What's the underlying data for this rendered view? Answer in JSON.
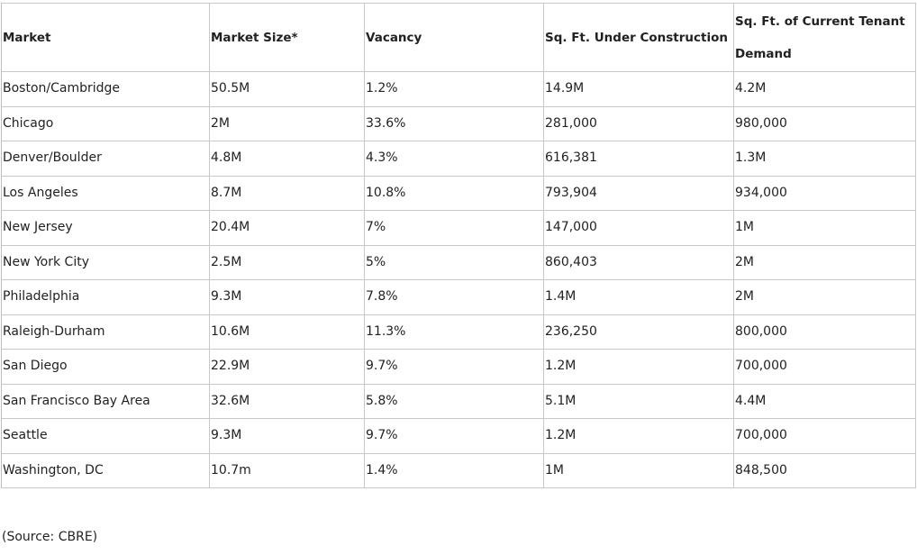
{
  "table": {
    "headers": [
      "Market",
      "Market Size*",
      "Vacancy",
      "Sq. Ft. Under Construction",
      "Sq. Ft. of Current Tenant Demand"
    ],
    "rows": [
      [
        "Boston/Cambridge",
        "50.5M",
        "1.2%",
        "14.9M",
        "4.2M"
      ],
      [
        "Chicago",
        "2M",
        "33.6%",
        "281,000",
        "980,000"
      ],
      [
        "Denver/Boulder",
        "4.8M",
        "4.3%",
        "616,381",
        "1.3M"
      ],
      [
        "Los Angeles",
        "8.7M",
        "10.8%",
        "793,904",
        "934,000"
      ],
      [
        "New Jersey",
        "20.4M",
        "7%",
        "147,000",
        "1M"
      ],
      [
        "New York City",
        "2.5M",
        "5%",
        "860,403",
        "2M"
      ],
      [
        "Philadelphia",
        "9.3M",
        "7.8%",
        "1.4M",
        "2M"
      ],
      [
        "Raleigh-Durham",
        "10.6M",
        "11.3%",
        "236,250",
        "800,000"
      ],
      [
        "San Diego",
        "22.9M",
        "9.7%",
        "1.2M",
        "700,000"
      ],
      [
        "San Francisco Bay Area",
        "32.6M",
        "5.8%",
        "5.1M",
        "4.4M"
      ],
      [
        "Seattle",
        "9.3M",
        "9.7%",
        "1.2M",
        "700,000"
      ],
      [
        "Washington, DC",
        "10.7m",
        "1.4%",
        "1M",
        "848,500"
      ]
    ]
  },
  "source_note": "(Source: CBRE)"
}
